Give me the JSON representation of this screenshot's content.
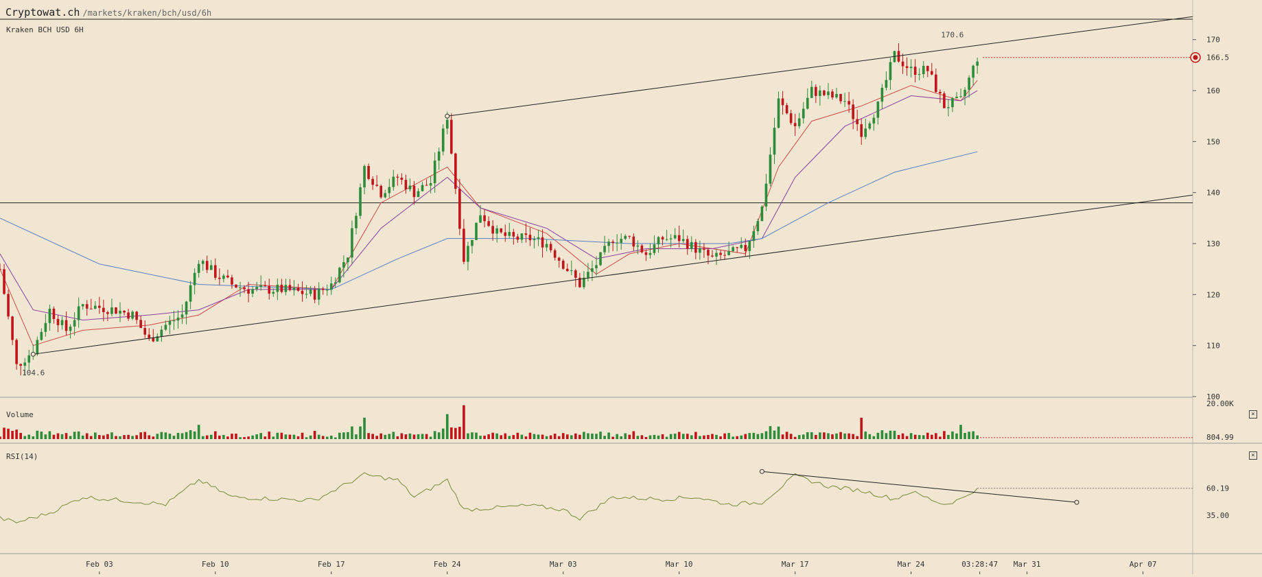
{
  "header": {
    "brand": "Cryptowat.ch",
    "path": "/markets/kraken/bch/usd/6h"
  },
  "main_pane": {
    "label": "Kraken BCH USD 6H"
  },
  "volume_pane": {
    "label": "Volume",
    "axis_labels": [
      "20.00K",
      "804.99"
    ]
  },
  "rsi_pane": {
    "label": "RSI(14)",
    "axis_labels": [
      "60.19",
      "35.00"
    ]
  },
  "colors": {
    "background": "#f0e6d2",
    "up": "#2e8b3a",
    "down": "#c0151b",
    "ma_fast": "#d04a4a",
    "ma_mid": "#8a3fa0",
    "ma_slow": "#5a7fc8",
    "rsi_line": "#7a8a3a",
    "trendline": "#222222"
  },
  "icons": {
    "price_marker": "red-target-icon",
    "close": "close-x-icon"
  },
  "chart_data": {
    "type": "candlestick",
    "exchange": "Kraken",
    "pair": "BCH/USD",
    "interval": "6H",
    "price_axis_ticks": [
      100,
      110,
      120,
      130,
      140,
      150,
      160,
      170
    ],
    "price_range": [
      100,
      174
    ],
    "current_price": 166.5,
    "annotations": {
      "high_label": "170.6",
      "high_value": 170.6,
      "high_date": "2025-03-25",
      "low_label": "104.6",
      "low_value": 104.6,
      "low_date": "2025-01-29"
    },
    "x_ticks": [
      {
        "date": "2025-02-03",
        "label": "Feb 03"
      },
      {
        "date": "2025-02-10",
        "label": "Feb 10"
      },
      {
        "date": "2025-02-17",
        "label": "Feb 17"
      },
      {
        "date": "2025-02-24",
        "label": "Feb 24"
      },
      {
        "date": "2025-03-03",
        "label": "Mar 03"
      },
      {
        "date": "2025-03-10",
        "label": "Mar 10"
      },
      {
        "date": "2025-03-17",
        "label": "Mar 17"
      },
      {
        "date": "2025-03-24",
        "label": "Mar 24"
      },
      {
        "date": "2025-03-28 03:28:47",
        "label": "03:28:47"
      },
      {
        "date": "2025-03-31",
        "label": "Mar 31"
      },
      {
        "date": "2025-04-07",
        "label": "Apr 07"
      }
    ],
    "x_range": [
      "2025-01-28",
      "2025-04-10"
    ],
    "horizontal_lines": [
      174,
      138
    ],
    "trendlines": [
      {
        "name": "upper",
        "from": {
          "date": "2025-02-24",
          "price": 155
        },
        "to": {
          "date": "2025-04-10",
          "price": 174.5
        }
      },
      {
        "name": "lower",
        "from": {
          "date": "2025-01-30",
          "price": 108.3
        },
        "to": {
          "date": "2025-04-10",
          "price": 139.5
        }
      }
    ],
    "price_keyframes": [
      [
        "2025-01-28",
        125,
        1
      ],
      [
        "2025-01-29",
        106,
        0
      ],
      [
        "2025-01-30",
        109,
        0
      ],
      [
        "2025-01-31",
        117,
        1
      ],
      [
        "2025-02-01",
        113,
        0
      ],
      [
        "2025-02-02",
        118,
        0
      ],
      [
        "2025-02-04",
        117,
        0
      ],
      [
        "2025-02-05",
        116,
        0
      ],
      [
        "2025-02-06",
        111,
        0
      ],
      [
        "2025-02-07",
        114,
        0
      ],
      [
        "2025-02-08",
        116,
        0
      ],
      [
        "2025-02-09",
        127,
        1
      ],
      [
        "2025-02-10",
        124,
        0
      ],
      [
        "2025-02-11",
        122,
        0
      ],
      [
        "2025-02-12",
        121,
        0
      ],
      [
        "2025-02-14",
        121,
        0
      ],
      [
        "2025-02-16",
        120,
        0
      ],
      [
        "2025-02-17",
        122,
        0
      ],
      [
        "2025-02-18",
        128,
        1
      ],
      [
        "2025-02-19",
        145,
        1
      ],
      [
        "2025-02-20",
        140,
        0
      ],
      [
        "2025-02-21",
        143,
        0
      ],
      [
        "2025-02-22",
        140,
        0
      ],
      [
        "2025-02-23",
        142,
        0
      ],
      [
        "2025-02-24",
        155,
        1
      ],
      [
        "2025-02-25",
        127,
        0
      ],
      [
        "2025-02-26",
        136,
        1
      ],
      [
        "2025-02-27",
        132,
        0
      ],
      [
        "2025-02-28",
        131,
        0
      ],
      [
        "2025-03-01",
        131,
        0
      ],
      [
        "2025-03-02",
        130,
        0
      ],
      [
        "2025-03-03",
        126,
        0
      ],
      [
        "2025-03-04",
        122,
        0
      ],
      [
        "2025-03-05",
        126,
        0
      ],
      [
        "2025-03-06",
        131,
        1
      ],
      [
        "2025-03-07",
        131,
        0
      ],
      [
        "2025-03-08",
        128,
        0
      ],
      [
        "2025-03-09",
        131,
        0
      ],
      [
        "2025-03-10",
        131,
        0
      ],
      [
        "2025-03-11",
        129,
        0
      ],
      [
        "2025-03-12",
        127,
        0
      ],
      [
        "2025-03-13",
        128,
        0
      ],
      [
        "2025-03-14",
        129,
        0
      ],
      [
        "2025-03-15",
        137,
        1
      ],
      [
        "2025-03-16",
        158,
        1
      ],
      [
        "2025-03-17",
        153,
        0
      ],
      [
        "2025-03-18",
        160,
        1
      ],
      [
        "2025-03-19",
        159,
        0
      ],
      [
        "2025-03-20",
        158,
        0
      ],
      [
        "2025-03-21",
        152,
        0
      ],
      [
        "2025-03-22",
        157,
        0
      ],
      [
        "2025-03-23",
        167,
        1
      ],
      [
        "2025-03-24",
        164,
        0
      ],
      [
        "2025-03-25",
        164,
        0
      ],
      [
        "2025-03-26",
        157,
        0
      ],
      [
        "2025-03-27",
        158,
        0
      ],
      [
        "2025-03-28",
        166.5,
        1
      ]
    ],
    "ma_series": [
      {
        "color": "#d04a4a",
        "points": [
          [
            "2025-01-28",
            125
          ],
          [
            "2025-01-30",
            110
          ],
          [
            "2025-02-02",
            113
          ],
          [
            "2025-02-06",
            114
          ],
          [
            "2025-02-09",
            116
          ],
          [
            "2025-02-12",
            122
          ],
          [
            "2025-02-17",
            121
          ],
          [
            "2025-02-20",
            138
          ],
          [
            "2025-02-24",
            145
          ],
          [
            "2025-02-26",
            137
          ],
          [
            "2025-03-02",
            132
          ],
          [
            "2025-03-05",
            124
          ],
          [
            "2025-03-07",
            128
          ],
          [
            "2025-03-10",
            130
          ],
          [
            "2025-03-14",
            128
          ],
          [
            "2025-03-16",
            145
          ],
          [
            "2025-03-18",
            154
          ],
          [
            "2025-03-21",
            157
          ],
          [
            "2025-03-24",
            161
          ],
          [
            "2025-03-27",
            158
          ],
          [
            "2025-03-28",
            162
          ]
        ]
      },
      {
        "color": "#8a3fa0",
        "points": [
          [
            "2025-01-28",
            128
          ],
          [
            "2025-01-30",
            117
          ],
          [
            "2025-02-02",
            115
          ],
          [
            "2025-02-06",
            116
          ],
          [
            "2025-02-09",
            117
          ],
          [
            "2025-02-12",
            121
          ],
          [
            "2025-02-17",
            121
          ],
          [
            "2025-02-20",
            133
          ],
          [
            "2025-02-24",
            143
          ],
          [
            "2025-02-26",
            137
          ],
          [
            "2025-03-02",
            133
          ],
          [
            "2025-03-05",
            127
          ],
          [
            "2025-03-08",
            129
          ],
          [
            "2025-03-12",
            129
          ],
          [
            "2025-03-15",
            131
          ],
          [
            "2025-03-17",
            143
          ],
          [
            "2025-03-20",
            153
          ],
          [
            "2025-03-24",
            159
          ],
          [
            "2025-03-27",
            158
          ],
          [
            "2025-03-28",
            160
          ]
        ]
      },
      {
        "color": "#5a7fc8",
        "points": [
          [
            "2025-01-28",
            135
          ],
          [
            "2025-02-03",
            126
          ],
          [
            "2025-02-09",
            122
          ],
          [
            "2025-02-17",
            121
          ],
          [
            "2025-02-21",
            127
          ],
          [
            "2025-02-24",
            131
          ],
          [
            "2025-03-01",
            131
          ],
          [
            "2025-03-07",
            130
          ],
          [
            "2025-03-13",
            130
          ],
          [
            "2025-03-15",
            131
          ],
          [
            "2025-03-19",
            138
          ],
          [
            "2025-03-23",
            144
          ],
          [
            "2025-03-28",
            148
          ]
        ]
      }
    ],
    "volume_spikes": [
      [
        "2025-02-09",
        8000
      ],
      [
        "2025-02-19",
        12000
      ],
      [
        "2025-02-24",
        14000
      ],
      [
        "2025-02-25",
        19000
      ],
      [
        "2025-03-21",
        12000
      ],
      [
        "2025-03-27",
        8000
      ]
    ],
    "rsi": {
      "period": 14,
      "current": 60.19,
      "reference_line": 35,
      "keyframes": [
        [
          "2025-01-28",
          32
        ],
        [
          "2025-01-29",
          28
        ],
        [
          "2025-01-31",
          37
        ],
        [
          "2025-02-02",
          52
        ],
        [
          "2025-02-05",
          48
        ],
        [
          "2025-02-07",
          45
        ],
        [
          "2025-02-09",
          68
        ],
        [
          "2025-02-11",
          52
        ],
        [
          "2025-02-14",
          50
        ],
        [
          "2025-02-16",
          49
        ],
        [
          "2025-02-19",
          73
        ],
        [
          "2025-02-21",
          68
        ],
        [
          "2025-02-22",
          52
        ],
        [
          "2025-02-24",
          68
        ],
        [
          "2025-02-25",
          40
        ],
        [
          "2025-03-01",
          44
        ],
        [
          "2025-03-03",
          40
        ],
        [
          "2025-03-04",
          32
        ],
        [
          "2025-03-06",
          52
        ],
        [
          "2025-03-09",
          50
        ],
        [
          "2025-03-11",
          52
        ],
        [
          "2025-03-13",
          45
        ],
        [
          "2025-03-15",
          47
        ],
        [
          "2025-03-17",
          72
        ],
        [
          "2025-03-19",
          62
        ],
        [
          "2025-03-21",
          58
        ],
        [
          "2025-03-23",
          50
        ],
        [
          "2025-03-24",
          57
        ],
        [
          "2025-03-26",
          45
        ],
        [
          "2025-03-27",
          50
        ],
        [
          "2025-03-28",
          60.19
        ]
      ],
      "trendline": {
        "from": {
          "date": "2025-03-15",
          "value": 76
        },
        "to": {
          "date": "2025-04-03",
          "value": 47
        }
      }
    }
  }
}
